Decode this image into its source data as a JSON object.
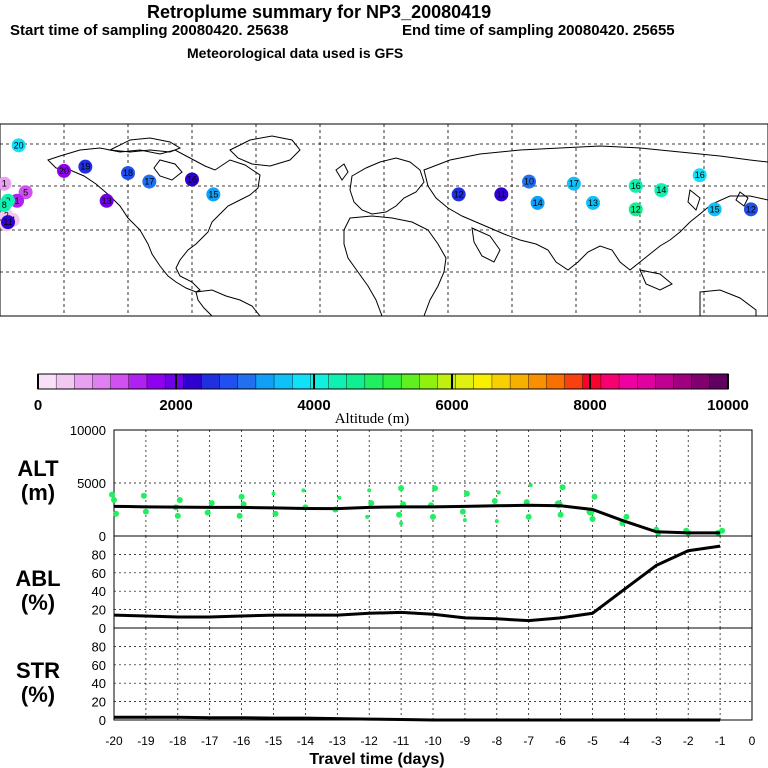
{
  "header": {
    "title": "Retroplume summary for NP3_20080419",
    "start_label": "Start time of sampling 20080420. 25638",
    "end_label": "End time of sampling 20080420. 25655",
    "met_label": "Meteorological data used is GFS"
  },
  "colorbar": {
    "ticks": [
      "0",
      "2000",
      "4000",
      "6000",
      "8000",
      "10000"
    ],
    "label": "Altitude (m)",
    "colors": [
      "#f8e0f8",
      "#f0c8f0",
      "#e8a0f0",
      "#e080f0",
      "#d050f0",
      "#b020f0",
      "#9000f0",
      "#7000e8",
      "#3000d0",
      "#2030e0",
      "#2050f0",
      "#2070f0",
      "#10a0f8",
      "#10c0f8",
      "#10e0f8",
      "#10f0e0",
      "#10f0b0",
      "#10f090",
      "#20f060",
      "#30f040",
      "#60f020",
      "#90f010",
      "#c0f010",
      "#e0f010",
      "#f8f000",
      "#f8d000",
      "#f8b000",
      "#f89000",
      "#f87000",
      "#f84010",
      "#f80030",
      "#f80070",
      "#f000a0",
      "#e000a0",
      "#c00090",
      "#a00080",
      "#800070",
      "#600060"
    ]
  },
  "map_points": [
    {
      "label": "1",
      "lon": -178,
      "lat": 62,
      "color": "#e8a0f0"
    },
    {
      "label": "2",
      "lon": -177,
      "lat": 47,
      "color": "#f0c8f0"
    },
    {
      "label": "3",
      "lon": -177,
      "lat": 43,
      "color": "#f0c8f0"
    },
    {
      "label": "4",
      "lon": -174,
      "lat": 45,
      "color": "#f0c8f0"
    },
    {
      "label": "5",
      "lon": -168,
      "lat": 58,
      "color": "#d050f0"
    },
    {
      "label": "1",
      "lon": -172,
      "lat": 54,
      "color": "#b020f0"
    },
    {
      "label": "20",
      "lon": -150,
      "lat": 68,
      "color": "#9000f0"
    },
    {
      "label": "19",
      "lon": -140,
      "lat": 70,
      "color": "#2030e0"
    },
    {
      "label": "18",
      "lon": -120,
      "lat": 67,
      "color": "#2050f0"
    },
    {
      "label": "17",
      "lon": -110,
      "lat": 63,
      "color": "#2070f0"
    },
    {
      "label": "16",
      "lon": -90,
      "lat": 64,
      "color": "#3000d0"
    },
    {
      "label": "15",
      "lon": -80,
      "lat": 57,
      "color": "#10a0f8"
    },
    {
      "label": "13",
      "lon": -130,
      "lat": 54,
      "color": "#7000e8"
    },
    {
      "label": "12",
      "lon": 35,
      "lat": 57,
      "color": "#2030e0"
    },
    {
      "label": "11",
      "lon": 55,
      "lat": 57,
      "color": "#3000d0"
    },
    {
      "label": "10",
      "lon": 68,
      "lat": 63,
      "color": "#2070f0"
    },
    {
      "label": "14",
      "lon": 72,
      "lat": 53,
      "color": "#10a0f8"
    },
    {
      "label": "17",
      "lon": 89,
      "lat": 62,
      "color": "#10c0f8"
    },
    {
      "label": "13",
      "lon": 98,
      "lat": 53,
      "color": "#10c0f8"
    },
    {
      "label": "16",
      "lon": 118,
      "lat": 61,
      "color": "#10f0b0"
    },
    {
      "label": "12",
      "lon": 118,
      "lat": 50,
      "color": "#10f090"
    },
    {
      "label": "14",
      "lon": 130,
      "lat": 59,
      "color": "#10f0b0"
    },
    {
      "label": "16",
      "lon": 148,
      "lat": 66,
      "color": "#10e0f8"
    },
    {
      "label": "15",
      "lon": 155,
      "lat": 50,
      "color": "#10c0f8"
    },
    {
      "label": "11",
      "lon": 180,
      "lat": 44,
      "color": "#3000d0"
    },
    {
      "label": "12",
      "lon": 172,
      "lat": 50,
      "color": "#2050f0"
    },
    {
      "label": "9",
      "lon": 180,
      "lat": 54,
      "color": "#10f0b0"
    },
    {
      "label": "8",
      "lon": -178,
      "lat": 52,
      "color": "#10f0b0"
    },
    {
      "label": "20",
      "lon": 185,
      "lat": 80,
      "color": "#10e0f8"
    }
  ],
  "chart_data": [
    {
      "type": "scatter",
      "panel": "ALT",
      "ylabel_line1": "ALT",
      "ylabel_line2": "(m)",
      "ylim": [
        0,
        10000
      ],
      "yticks": [
        "0",
        "5000",
        "10000"
      ],
      "x": [
        -20,
        -19,
        -18,
        -17,
        -16,
        -15,
        -14,
        -13,
        -12,
        -11,
        -10,
        -9,
        -8,
        -7,
        -6,
        -5,
        -4,
        -3,
        -2,
        -1
      ],
      "median": [
        2800,
        2750,
        2720,
        2700,
        2700,
        2650,
        2600,
        2580,
        2700,
        2750,
        2750,
        2800,
        2850,
        2900,
        2850,
        2500,
        1400,
        400,
        300,
        300
      ],
      "points_x": [
        -20,
        -20,
        -20,
        -19,
        -19,
        -18,
        -18,
        -18,
        -17,
        -17,
        -16,
        -16,
        -16,
        -15,
        -15,
        -14,
        -14,
        -13,
        -13,
        -12,
        -12,
        -12,
        -11,
        -11,
        -11,
        -11,
        -10,
        -10,
        -10,
        -9,
        -9,
        -9,
        -8,
        -8,
        -8,
        -7,
        -7,
        -7,
        -6,
        -6,
        -6,
        -5,
        -5,
        -5,
        -4,
        -4,
        -3,
        -3,
        -2,
        -2,
        -1,
        -1
      ],
      "points_y": [
        3900,
        3400,
        2100,
        3800,
        2300,
        3400,
        2700,
        1900,
        3100,
        2200,
        3700,
        3000,
        1900,
        4000,
        2100,
        4300,
        2700,
        3600,
        2500,
        4300,
        3100,
        1800,
        4500,
        3000,
        2000,
        1200,
        4500,
        2900,
        1800,
        4000,
        2300,
        1500,
        4100,
        3300,
        1400,
        4800,
        3200,
        1800,
        4600,
        3000,
        2000,
        3700,
        2300,
        1600,
        1800,
        1200,
        600,
        300,
        500,
        300,
        500,
        300
      ],
      "points_size": [
        3,
        3,
        3,
        3,
        3,
        3,
        3,
        3,
        3,
        3,
        3,
        3,
        3,
        2,
        3,
        2,
        3,
        2,
        3,
        2,
        3,
        2,
        3,
        3,
        3,
        2,
        3,
        3,
        3,
        3,
        3,
        2,
        2,
        3,
        2,
        2,
        3,
        3,
        3,
        4,
        3,
        3,
        4,
        3,
        3,
        3,
        3,
        3,
        3,
        3,
        3,
        3
      ]
    },
    {
      "type": "line",
      "panel": "ABL",
      "ylabel_line1": "ABL",
      "ylabel_line2": "(%)",
      "ylim": [
        0,
        100
      ],
      "yticks": [
        "0",
        "20",
        "40",
        "60",
        "80"
      ],
      "x": [
        -20,
        -19,
        -18,
        -17,
        -16,
        -15,
        -14,
        -13,
        -12,
        -11,
        -10,
        -9,
        -8,
        -7,
        -6,
        -5,
        -4,
        -3,
        -2,
        -1
      ],
      "values": [
        14,
        13,
        12,
        12,
        13,
        14,
        14,
        14,
        16,
        17,
        15,
        11,
        10,
        8,
        11,
        16,
        42,
        68,
        84,
        89
      ]
    },
    {
      "type": "line",
      "panel": "STR",
      "ylabel_line1": "STR",
      "ylabel_line2": "(%)",
      "ylim": [
        0,
        100
      ],
      "yticks": [
        "0",
        "20",
        "40",
        "60",
        "80"
      ],
      "x": [
        -20,
        -19,
        -18,
        -17,
        -16,
        -15,
        -14,
        -13,
        -12,
        -11,
        -10,
        -9,
        -8,
        -7,
        -6,
        -5,
        -4,
        -3,
        -2,
        -1
      ],
      "values": [
        3,
        3,
        3,
        2.5,
        2.5,
        2,
        2,
        1.5,
        1,
        0.5,
        0,
        0,
        0,
        0,
        0,
        0,
        0,
        0,
        0,
        0
      ],
      "xlabel": "Travel time (days)",
      "xticks": [
        "-20",
        "-19",
        "-18",
        "-17",
        "-16",
        "-15",
        "-14",
        "-13",
        "-12",
        "-11",
        "-10",
        "-9",
        "-8",
        "-7",
        "-6",
        "-5",
        "-4",
        "-3",
        "-2",
        "-1",
        "0"
      ]
    }
  ]
}
